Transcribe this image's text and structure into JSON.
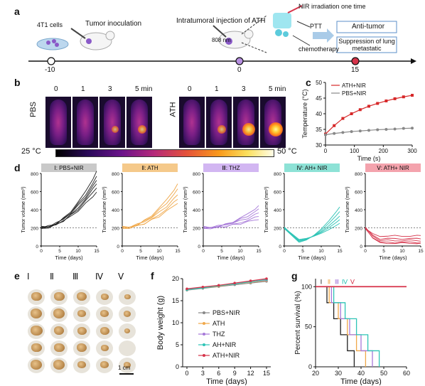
{
  "panels": {
    "a": "a",
    "b": "b",
    "c": "c",
    "d": "d",
    "e": "e",
    "f": "f",
    "g": "g"
  },
  "timeline": {
    "cells": "4T1 cells",
    "inoculation": "Tumor inoculation",
    "injection": "Intratumoral injection of ATH",
    "nir": "NIR irradiation one time",
    "laser": "808 nm",
    "ptt": "PTT",
    "chemo": "chemotherapy",
    "box1": "Anti-tumor",
    "box2": "Suppression of lung metastatic",
    "t_m10": "-10",
    "t_0": "0",
    "t_15": "15"
  },
  "thermal": {
    "times": [
      "0",
      "1",
      "3",
      "5 min"
    ],
    "pbs": "PBS",
    "ath": "ATH",
    "scale_min": "25 °C",
    "scale_max": "50 °C",
    "pbs_hot": [
      0,
      0,
      0.3,
      0.45
    ],
    "ath_hot": [
      0,
      0.4,
      0.85,
      1.0
    ]
  },
  "colors": {
    "red": "#d62728",
    "gray": "#888888",
    "orange": "#f0a84a",
    "purple": "#a678d8",
    "teal": "#2ec4b6",
    "crimson": "#d6334a"
  },
  "chart_c": {
    "type": "line",
    "xlabel": "Time (s)",
    "ylabel": "Temperature (°C)",
    "xlim": [
      0,
      300
    ],
    "ylim": [
      30,
      50
    ],
    "xticks": [
      0,
      100,
      200,
      300
    ],
    "yticks": [
      30,
      35,
      40,
      45,
      50
    ],
    "series": [
      {
        "name": "ATH+NIR",
        "color": "#d62728",
        "x": [
          0,
          30,
          60,
          90,
          120,
          150,
          180,
          210,
          240,
          270,
          300
        ],
        "y": [
          33.5,
          36.2,
          38.5,
          40.0,
          41.3,
          42.4,
          43.3,
          44.1,
          44.8,
          45.4,
          45.9
        ]
      },
      {
        "name": "PBS+NIR",
        "color": "#888888",
        "x": [
          0,
          30,
          60,
          90,
          120,
          150,
          180,
          210,
          240,
          270,
          300
        ],
        "y": [
          33.3,
          33.7,
          34.0,
          34.3,
          34.5,
          34.7,
          34.9,
          35.0,
          35.1,
          35.3,
          35.4
        ]
      }
    ]
  },
  "chart_d": [
    {
      "title": "Ⅰ: PBS+NIR",
      "ylabel": "Tumor volume (mm³)",
      "xlabel": "Time (days)",
      "head": "#c9c9c9",
      "line": "#222222",
      "ends": [
        820,
        760,
        720,
        690,
        650,
        600
      ]
    },
    {
      "title": "Ⅱ: ATH",
      "ylabel": "Tumor volume (mm³)",
      "xlabel": "Time (days)",
      "head": "#f5c98a",
      "line": "#f0a84a",
      "ends": [
        680,
        620,
        560,
        520,
        480
      ]
    },
    {
      "title": "Ⅲ: THZ",
      "ylabel": "Tumor volume (mm³)",
      "xlabel": "Time (days)",
      "head": "#d2b6f2",
      "line": "#a678d8",
      "ends": [
        440,
        400,
        360,
        330,
        300
      ]
    },
    {
      "title": "Ⅳ: AH+ NIR",
      "ylabel": "Tumor volume (mm³)",
      "xlabel": "Time (days)",
      "head": "#8de2d6",
      "line": "#2ec4b6",
      "ends": [
        430,
        380,
        330,
        290,
        250
      ]
    },
    {
      "title": "Ⅴ: ATH+ NIR",
      "ylabel": "Tumor volume (mm³)",
      "xlabel": "Time (days)",
      "head": "#f4a3ad",
      "line": "#d6334a",
      "ends": [
        110,
        80,
        60,
        40,
        30
      ]
    }
  ],
  "chart_d_axes": {
    "xticks": [
      0,
      5,
      10,
      15
    ],
    "yticks": [
      0,
      200,
      400,
      600,
      800
    ],
    "ylim": [
      0,
      800
    ]
  },
  "photo": {
    "groups": [
      "Ⅰ",
      "Ⅱ",
      "Ⅲ",
      "Ⅳ",
      "Ⅴ"
    ],
    "scalebar": "1 cm"
  },
  "chart_f": {
    "type": "line",
    "xlabel": "Time (days)",
    "ylabel": "Body weight (g)",
    "xticks": [
      0,
      3,
      6,
      9,
      12,
      15
    ],
    "yticks": [
      0,
      5,
      10,
      15,
      20
    ],
    "ylim": [
      0,
      20
    ],
    "x": [
      0,
      3,
      6,
      9,
      12,
      15
    ],
    "series": [
      {
        "name": "PBS+NIR",
        "color": "#888888",
        "y": [
          17.4,
          17.8,
          18.2,
          18.6,
          19.0,
          19.4
        ]
      },
      {
        "name": "ATH",
        "color": "#f0a84a",
        "y": [
          17.5,
          17.9,
          18.3,
          18.8,
          19.2,
          19.6
        ]
      },
      {
        "name": "THZ",
        "color": "#a678d8",
        "y": [
          17.6,
          18.0,
          18.4,
          18.9,
          19.3,
          19.7
        ]
      },
      {
        "name": "AH+NIR",
        "color": "#2ec4b6",
        "y": [
          17.5,
          17.9,
          18.4,
          18.8,
          19.3,
          19.8
        ]
      },
      {
        "name": "ATH+NIR",
        "color": "#d6334a",
        "y": [
          17.7,
          18.1,
          18.5,
          19.0,
          19.5,
          20.0
        ]
      }
    ]
  },
  "chart_g": {
    "type": "line",
    "xlabel": "Time (days)",
    "ylabel": "Percent survival (%)",
    "xticks": [
      20,
      30,
      40,
      50,
      60
    ],
    "yticks": [
      0,
      50,
      100
    ],
    "xlim": [
      20,
      60
    ],
    "ylim": [
      0,
      110
    ],
    "labels": [
      "Ⅰ",
      "Ⅱ",
      "Ⅲ",
      "Ⅳ",
      "Ⅴ"
    ],
    "series": [
      {
        "name": "Ⅰ",
        "color": "#222222",
        "steps": [
          [
            20,
            100
          ],
          [
            25,
            100
          ],
          [
            25,
            80
          ],
          [
            28,
            80
          ],
          [
            28,
            60
          ],
          [
            31,
            60
          ],
          [
            31,
            40
          ],
          [
            34,
            40
          ],
          [
            34,
            20
          ],
          [
            37,
            20
          ],
          [
            37,
            0
          ]
        ]
      },
      {
        "name": "Ⅱ",
        "color": "#f0a84a",
        "steps": [
          [
            20,
            100
          ],
          [
            26,
            100
          ],
          [
            26,
            80
          ],
          [
            30,
            80
          ],
          [
            30,
            60
          ],
          [
            34,
            60
          ],
          [
            34,
            40
          ],
          [
            38,
            40
          ],
          [
            38,
            20
          ],
          [
            42,
            20
          ],
          [
            42,
            0
          ]
        ]
      },
      {
        "name": "Ⅲ",
        "color": "#a678d8",
        "steps": [
          [
            20,
            100
          ],
          [
            27,
            100
          ],
          [
            27,
            80
          ],
          [
            31,
            80
          ],
          [
            31,
            60
          ],
          [
            35,
            60
          ],
          [
            35,
            40
          ],
          [
            40,
            40
          ],
          [
            40,
            20
          ],
          [
            45,
            20
          ],
          [
            45,
            0
          ]
        ]
      },
      {
        "name": "Ⅳ",
        "color": "#2ec4b6",
        "steps": [
          [
            20,
            100
          ],
          [
            28,
            100
          ],
          [
            28,
            80
          ],
          [
            33,
            80
          ],
          [
            33,
            60
          ],
          [
            38,
            60
          ],
          [
            38,
            40
          ],
          [
            43,
            40
          ],
          [
            43,
            20
          ],
          [
            48,
            20
          ],
          [
            48,
            0
          ]
        ]
      },
      {
        "name": "Ⅴ",
        "color": "#d6334a",
        "steps": [
          [
            20,
            100
          ],
          [
            60,
            100
          ]
        ]
      }
    ]
  }
}
